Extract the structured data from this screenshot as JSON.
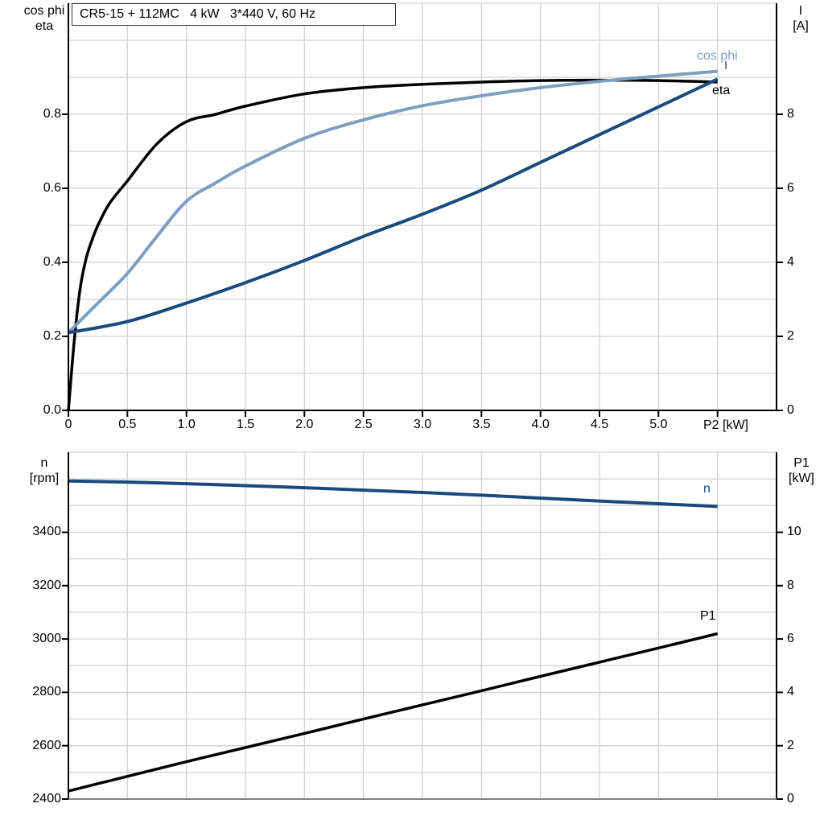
{
  "title": "CR5-15 + 112MC   4 kW   3*440 V, 60 Hz",
  "colors": {
    "black": "#000000",
    "dark_blue": "#1a4a7d",
    "light_blue": "#7d9fc0",
    "grid": "#d3d3d3",
    "axis": "#000000",
    "bottom_axis_gray": "#808080"
  },
  "top_chart": {
    "corner_left": [
      "cos phi",
      "eta"
    ],
    "corner_right": [
      "I",
      "[A]"
    ],
    "x_axis_label": "P2 [kW]",
    "curve_labels": {
      "cos_phi": "cos phi",
      "current": "I",
      "eta": "eta"
    }
  },
  "bottom_chart": {
    "corner_left": [
      "n",
      "[rpm]"
    ],
    "corner_right": [
      "P1",
      "[kW]"
    ],
    "curve_labels": {
      "n": "n",
      "p1": "P1"
    }
  },
  "chart_data": [
    {
      "type": "line",
      "panel": "top",
      "title": "CR5-15 + 112MC   4 kW   3*440 V, 60 Hz",
      "xlabel": "P2 [kW]",
      "x_range": [
        0,
        6
      ],
      "x_grid_step": 0.5,
      "grid": true,
      "x_ticks": {
        "values": [
          0,
          0.5,
          1,
          1.5,
          2,
          2.5,
          3,
          3.5,
          4,
          4.5,
          5,
          5.5
        ],
        "labels": [
          "0",
          "0.5",
          "1.0",
          "1.5",
          "2.0",
          "2.5",
          "3.0",
          "3.5",
          "4.0",
          "4.5",
          "5.0",
          ""
        ]
      },
      "left_axis": {
        "label": "cos phi / eta",
        "range": [
          0,
          1.1
        ],
        "grid_step": 0.1,
        "tick_values": [
          0,
          0.2,
          0.4,
          0.6,
          0.8
        ],
        "tick_labels": [
          "0.0",
          "0.2",
          "0.4",
          "0.6",
          "0.8"
        ]
      },
      "right_axis": {
        "label": "I [A]",
        "range": [
          0,
          11
        ],
        "tick_values": [
          0,
          2,
          4,
          6,
          8
        ],
        "tick_labels": [
          "0",
          "2",
          "4",
          "6",
          "8"
        ]
      },
      "series": [
        {
          "name": "eta",
          "axis": "left",
          "color_key": "black",
          "x": [
            0,
            0.05,
            0.1,
            0.15,
            0.2,
            0.25,
            0.35,
            0.5,
            0.75,
            1,
            1.25,
            1.5,
            2,
            2.5,
            3,
            3.5,
            4,
            4.5,
            5,
            5.5
          ],
          "y": [
            0,
            0.19,
            0.33,
            0.41,
            0.46,
            0.5,
            0.56,
            0.62,
            0.72,
            0.78,
            0.8,
            0.822,
            0.855,
            0.872,
            0.881,
            0.887,
            0.891,
            0.892,
            0.891,
            0.887
          ]
        },
        {
          "name": "cos phi",
          "axis": "left",
          "color_key": "light_blue",
          "x": [
            0,
            0.25,
            0.5,
            0.75,
            1,
            1.25,
            1.5,
            2,
            2.5,
            3,
            3.5,
            4,
            4.5,
            5,
            5.5
          ],
          "y": [
            0.21,
            0.29,
            0.37,
            0.47,
            0.565,
            0.615,
            0.66,
            0.735,
            0.785,
            0.823,
            0.85,
            0.872,
            0.889,
            0.903,
            0.916
          ]
        },
        {
          "name": "I",
          "axis": "right",
          "color_key": "dark_blue",
          "x": [
            0,
            0.5,
            1,
            1.5,
            2,
            2.5,
            3,
            3.5,
            4,
            4.5,
            5,
            5.5
          ],
          "y": [
            2.1,
            2.4,
            2.9,
            3.45,
            4.05,
            4.7,
            5.3,
            5.95,
            6.7,
            7.45,
            8.2,
            8.95
          ]
        }
      ]
    },
    {
      "type": "line",
      "panel": "bottom",
      "x_range": [
        0,
        6
      ],
      "x_grid_step": 0.5,
      "grid": true,
      "x_ticks": {
        "values": [],
        "labels": []
      },
      "left_axis": {
        "label": "n [rpm]",
        "range": [
          2400,
          3700
        ],
        "grid_step": 100,
        "tick_values": [
          2400,
          2600,
          2800,
          3000,
          3200,
          3400
        ],
        "tick_labels": [
          "2400",
          "2600",
          "2800",
          "3000",
          "3200",
          "3400"
        ]
      },
      "right_axis": {
        "label": "P1 [kW]",
        "range": [
          0,
          13
        ],
        "tick_values": [
          0,
          2,
          4,
          6,
          8,
          10
        ],
        "tick_labels": [
          "0",
          "2",
          "4",
          "6",
          "8",
          "10"
        ]
      },
      "series": [
        {
          "name": "n",
          "axis": "left",
          "color_key": "dark_blue",
          "x": [
            0,
            0.5,
            1,
            1.5,
            2,
            2.5,
            3,
            3.5,
            4,
            4.5,
            5,
            5.5
          ],
          "y": [
            3592,
            3588,
            3582,
            3575,
            3567,
            3558,
            3549,
            3539,
            3528,
            3517,
            3507,
            3497
          ]
        },
        {
          "name": "P1",
          "axis": "right",
          "color_key": "black",
          "x": [
            0,
            0.5,
            1,
            1.5,
            2,
            2.5,
            3,
            3.5,
            4,
            4.5,
            5,
            5.5
          ],
          "y": [
            0.3,
            0.85,
            1.4,
            1.93,
            2.46,
            3.0,
            3.53,
            4.06,
            4.6,
            5.13,
            5.66,
            6.2
          ]
        }
      ]
    }
  ]
}
